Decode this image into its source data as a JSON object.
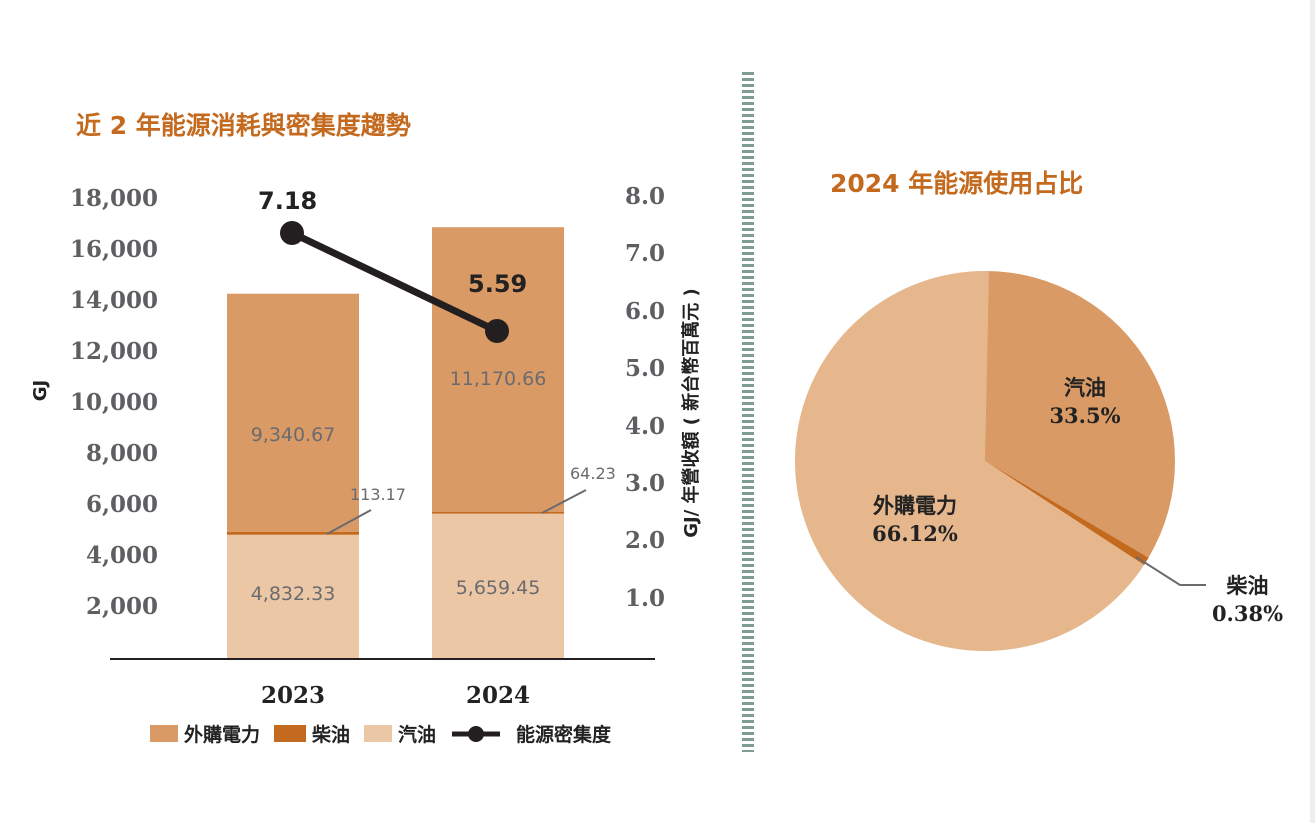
{
  "left_chart": {
    "title": "近 2 年能源消耗與密集度趨勢",
    "left_axis_label": "GJ",
    "right_axis_label": "GJ/ 年營收額 ( 新台幣百萬元 )",
    "left_ticks": [
      "2,000",
      "4,000",
      "6,000",
      "8,000",
      "10,000",
      "12,000",
      "14,000",
      "16,000",
      "18,000"
    ],
    "right_ticks": [
      "1.0",
      "2.0",
      "3.0",
      "4.0",
      "5.0",
      "6.0",
      "7.0",
      "8.0"
    ],
    "years": [
      "2023",
      "2024"
    ],
    "segment_labels": {
      "gasoline": [
        "4,832.33",
        "5,659.45"
      ],
      "diesel": [
        "113.17",
        "64.23"
      ],
      "electricity": [
        "9,340.67",
        "11,170.66"
      ]
    },
    "intensity_labels": [
      "7.18",
      "5.59"
    ],
    "legend": {
      "electricity": "外購電力",
      "diesel": "柴油",
      "gasoline": "汽油",
      "intensity": "能源密集度"
    }
  },
  "right_chart": {
    "title": "2024 年能源使用占比",
    "slices": [
      {
        "name": "汽油",
        "pct_label": "33.5%"
      },
      {
        "name": "柴油",
        "pct_label": "0.38%"
      },
      {
        "name": "外購電力",
        "pct_label": "66.12%"
      }
    ]
  },
  "colors": {
    "title": "#C46A1F",
    "electricity": "#D99A65",
    "diesel": "#C46A1F",
    "gasoline": "#EBC7A6",
    "pie_electricity": "#E6B78C",
    "pie_gasoline": "#D99A65",
    "intensity_line": "#231F20",
    "divider": "#7F9C91"
  },
  "chart_data": [
    {
      "type": "bar",
      "stacked": true,
      "title": "近 2 年能源消耗與密集度趨勢",
      "categories": [
        "2023",
        "2024"
      ],
      "ylabel": "GJ",
      "ylim": [
        0,
        18000
      ],
      "y2label": "GJ/ 年營收額 ( 新台幣百萬元 )",
      "y2lim": [
        0,
        8.0
      ],
      "series": [
        {
          "name": "汽油",
          "values": [
            4832.33,
            5659.45
          ],
          "axis": "left"
        },
        {
          "name": "柴油",
          "values": [
            113.17,
            64.23
          ],
          "axis": "left"
        },
        {
          "name": "外購電力",
          "values": [
            9340.67,
            11170.66
          ],
          "axis": "left"
        },
        {
          "name": "能源密集度",
          "type": "line",
          "values": [
            7.18,
            5.59
          ],
          "axis": "right"
        }
      ],
      "legend_position": "bottom",
      "grid": false
    },
    {
      "type": "pie",
      "title": "2024 年能源使用占比",
      "labels": [
        "汽油",
        "柴油",
        "外購電力"
      ],
      "values": [
        33.5,
        0.38,
        66.12
      ],
      "unit": "%"
    }
  ]
}
